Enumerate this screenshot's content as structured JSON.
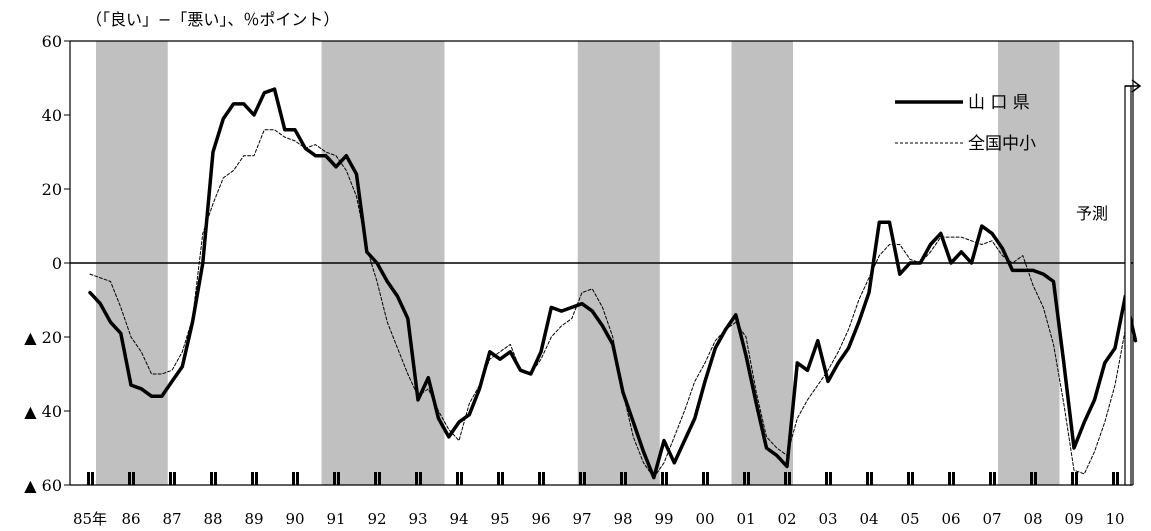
{
  "chart_data": {
    "type": "line",
    "unit_label": "（「良い」−「悪い」、％ポイント）",
    "xlabel": "",
    "ylabel": "",
    "ylim": [
      -60,
      60
    ],
    "y_ticks": [
      {
        "value": 60,
        "label": "60"
      },
      {
        "value": 40,
        "label": "40"
      },
      {
        "value": 20,
        "label": "20"
      },
      {
        "value": 0,
        "label": "0"
      },
      {
        "value": -20,
        "label": "▲ 20"
      },
      {
        "value": -40,
        "label": "▲ 40"
      },
      {
        "value": -60,
        "label": "▲ 60"
      }
    ],
    "x_start": 1985.0,
    "x_end": 2010.0,
    "x_tick_labels": [
      "85年",
      "86",
      "87",
      "88",
      "89",
      "90",
      "91",
      "92",
      "93",
      "94",
      "95",
      "96",
      "97",
      "98",
      "99",
      "00",
      "01",
      "02",
      "03",
      "04",
      "05",
      "06",
      "07",
      "08",
      "09",
      "10"
    ],
    "recession_shading": [
      [
        1985.0,
        1986.75
      ],
      [
        1990.5,
        1993.5
      ],
      [
        1996.75,
        1998.75
      ],
      [
        2000.5,
        2002.0
      ],
      [
        2007.0,
        2008.5
      ]
    ],
    "annotation": "予測",
    "grid": false,
    "legend_position": "top-right",
    "series": [
      {
        "name": "山 口 県",
        "color": "#000000",
        "values": [
          [
            1985.0,
            -8
          ],
          [
            1985.25,
            -11
          ],
          [
            1985.5,
            -16
          ],
          [
            1985.75,
            -19
          ],
          [
            1986.0,
            -33
          ],
          [
            1986.25,
            -34
          ],
          [
            1986.5,
            -36
          ],
          [
            1986.75,
            -36
          ],
          [
            1987.0,
            -32
          ],
          [
            1987.25,
            -28
          ],
          [
            1987.5,
            -16
          ],
          [
            1987.75,
            0
          ],
          [
            1988.0,
            30
          ],
          [
            1988.25,
            39
          ],
          [
            1988.5,
            43
          ],
          [
            1988.75,
            43
          ],
          [
            1989.0,
            40
          ],
          [
            1989.25,
            46
          ],
          [
            1989.5,
            47
          ],
          [
            1989.75,
            36
          ],
          [
            1990.0,
            36
          ],
          [
            1990.25,
            31
          ],
          [
            1990.5,
            29
          ],
          [
            1990.75,
            29
          ],
          [
            1991.0,
            26
          ],
          [
            1991.25,
            29
          ],
          [
            1991.5,
            24
          ],
          [
            1991.75,
            3
          ],
          [
            1992.0,
            0
          ],
          [
            1992.25,
            -5
          ],
          [
            1992.5,
            -9
          ],
          [
            1992.75,
            -15
          ],
          [
            1993.0,
            -37
          ],
          [
            1993.25,
            -31
          ],
          [
            1993.5,
            -42
          ],
          [
            1993.75,
            -47
          ],
          [
            1994.0,
            -43
          ],
          [
            1994.25,
            -41
          ],
          [
            1994.5,
            -34
          ],
          [
            1994.75,
            -24
          ],
          [
            1995.0,
            -26
          ],
          [
            1995.25,
            -24
          ],
          [
            1995.5,
            -29
          ],
          [
            1995.75,
            -30
          ],
          [
            1996.0,
            -24
          ],
          [
            1996.25,
            -12
          ],
          [
            1996.5,
            -13
          ],
          [
            1996.75,
            -12
          ],
          [
            1997.0,
            -11
          ],
          [
            1997.25,
            -13
          ],
          [
            1997.5,
            -17
          ],
          [
            1997.75,
            -22
          ],
          [
            1998.0,
            -35
          ],
          [
            1998.25,
            -43
          ],
          [
            1998.5,
            -51
          ],
          [
            1998.75,
            -58
          ],
          [
            1999.0,
            -48
          ],
          [
            1999.25,
            -54
          ],
          [
            1999.5,
            -48
          ],
          [
            1999.75,
            -42
          ],
          [
            2000.0,
            -32
          ],
          [
            2000.25,
            -23
          ],
          [
            2000.5,
            -18
          ],
          [
            2000.75,
            -14
          ],
          [
            2001.0,
            -25
          ],
          [
            2001.25,
            -38
          ],
          [
            2001.5,
            -50
          ],
          [
            2001.75,
            -52
          ],
          [
            2002.0,
            -55
          ],
          [
            2002.25,
            -27
          ],
          [
            2002.5,
            -29
          ],
          [
            2002.75,
            -21
          ],
          [
            2003.0,
            -32
          ],
          [
            2003.25,
            -27
          ],
          [
            2003.5,
            -23
          ],
          [
            2003.75,
            -16
          ],
          [
            2004.0,
            -8
          ],
          [
            2004.25,
            11
          ],
          [
            2004.5,
            11
          ],
          [
            2004.75,
            -3
          ],
          [
            2005.0,
            0
          ],
          [
            2005.25,
            0
          ],
          [
            2005.5,
            5
          ],
          [
            2005.75,
            8
          ],
          [
            2006.0,
            0
          ],
          [
            2006.25,
            3
          ],
          [
            2006.5,
            0
          ],
          [
            2006.75,
            10
          ],
          [
            2007.0,
            8
          ],
          [
            2007.25,
            4
          ],
          [
            2007.5,
            -2
          ],
          [
            2007.75,
            -2
          ],
          [
            2008.0,
            -2
          ],
          [
            2008.25,
            -3
          ],
          [
            2008.5,
            -5
          ],
          [
            2008.75,
            -27
          ],
          [
            2009.0,
            -50
          ],
          [
            2009.25,
            -43
          ],
          [
            2009.5,
            -37
          ],
          [
            2009.75,
            -27
          ],
          [
            2010.0,
            -23
          ],
          [
            2010.25,
            -9
          ],
          [
            2010.5,
            -21
          ]
        ]
      },
      {
        "name": "全国中小",
        "color": "#000000",
        "values": [
          [
            1985.0,
            -3
          ],
          [
            1985.25,
            -4
          ],
          [
            1985.5,
            -5
          ],
          [
            1985.75,
            -12
          ],
          [
            1986.0,
            -20
          ],
          [
            1986.25,
            -24
          ],
          [
            1986.5,
            -30
          ],
          [
            1986.75,
            -30
          ],
          [
            1987.0,
            -29
          ],
          [
            1987.25,
            -24
          ],
          [
            1987.5,
            -15
          ],
          [
            1987.75,
            8
          ],
          [
            1988.0,
            16
          ],
          [
            1988.25,
            23
          ],
          [
            1988.5,
            25
          ],
          [
            1988.75,
            29
          ],
          [
            1989.0,
            29
          ],
          [
            1989.25,
            36
          ],
          [
            1989.5,
            36
          ],
          [
            1989.75,
            34
          ],
          [
            1990.0,
            33
          ],
          [
            1990.25,
            31
          ],
          [
            1990.5,
            32
          ],
          [
            1990.75,
            30
          ],
          [
            1991.0,
            29
          ],
          [
            1991.25,
            25
          ],
          [
            1991.5,
            18
          ],
          [
            1991.75,
            4
          ],
          [
            1992.0,
            -5
          ],
          [
            1992.25,
            -16
          ],
          [
            1992.5,
            -23
          ],
          [
            1992.75,
            -30
          ],
          [
            1993.0,
            -36
          ],
          [
            1993.25,
            -34
          ],
          [
            1993.5,
            -40
          ],
          [
            1993.75,
            -45
          ],
          [
            1994.0,
            -48
          ],
          [
            1994.25,
            -38
          ],
          [
            1994.5,
            -33
          ],
          [
            1994.75,
            -26
          ],
          [
            1995.0,
            -24
          ],
          [
            1995.25,
            -22
          ],
          [
            1995.5,
            -29
          ],
          [
            1995.75,
            -30
          ],
          [
            1996.0,
            -26
          ],
          [
            1996.25,
            -20
          ],
          [
            1996.5,
            -17
          ],
          [
            1996.75,
            -15
          ],
          [
            1997.0,
            -8
          ],
          [
            1997.25,
            -7
          ],
          [
            1997.5,
            -12
          ],
          [
            1997.75,
            -20
          ],
          [
            1998.0,
            -35
          ],
          [
            1998.25,
            -47
          ],
          [
            1998.5,
            -54
          ],
          [
            1998.75,
            -58
          ],
          [
            1999.0,
            -54
          ],
          [
            1999.25,
            -47
          ],
          [
            1999.5,
            -40
          ],
          [
            1999.75,
            -32
          ],
          [
            2000.0,
            -27
          ],
          [
            2000.25,
            -21
          ],
          [
            2000.5,
            -18
          ],
          [
            2000.75,
            -16
          ],
          [
            2001.0,
            -20
          ],
          [
            2001.25,
            -35
          ],
          [
            2001.5,
            -47
          ],
          [
            2001.75,
            -50
          ],
          [
            2002.0,
            -52
          ],
          [
            2002.25,
            -42
          ],
          [
            2002.5,
            -37
          ],
          [
            2002.75,
            -33
          ],
          [
            2003.0,
            -29
          ],
          [
            2003.25,
            -24
          ],
          [
            2003.5,
            -18
          ],
          [
            2003.75,
            -10
          ],
          [
            2004.0,
            -4
          ],
          [
            2004.25,
            2
          ],
          [
            2004.5,
            5
          ],
          [
            2004.75,
            5
          ],
          [
            2005.0,
            1
          ],
          [
            2005.25,
            0
          ],
          [
            2005.5,
            3
          ],
          [
            2005.75,
            7
          ],
          [
            2006.0,
            7
          ],
          [
            2006.25,
            7
          ],
          [
            2006.5,
            6
          ],
          [
            2006.75,
            5
          ],
          [
            2007.0,
            6
          ],
          [
            2007.25,
            2
          ],
          [
            2007.5,
            0
          ],
          [
            2007.75,
            2
          ],
          [
            2008.0,
            -6
          ],
          [
            2008.25,
            -12
          ],
          [
            2008.5,
            -22
          ],
          [
            2008.75,
            -38
          ],
          [
            2009.0,
            -56
          ],
          [
            2009.25,
            -57
          ],
          [
            2009.5,
            -51
          ],
          [
            2009.75,
            -43
          ],
          [
            2010.0,
            -33
          ],
          [
            2010.25,
            -18
          ],
          [
            2010.5,
            -18
          ]
        ]
      }
    ]
  }
}
